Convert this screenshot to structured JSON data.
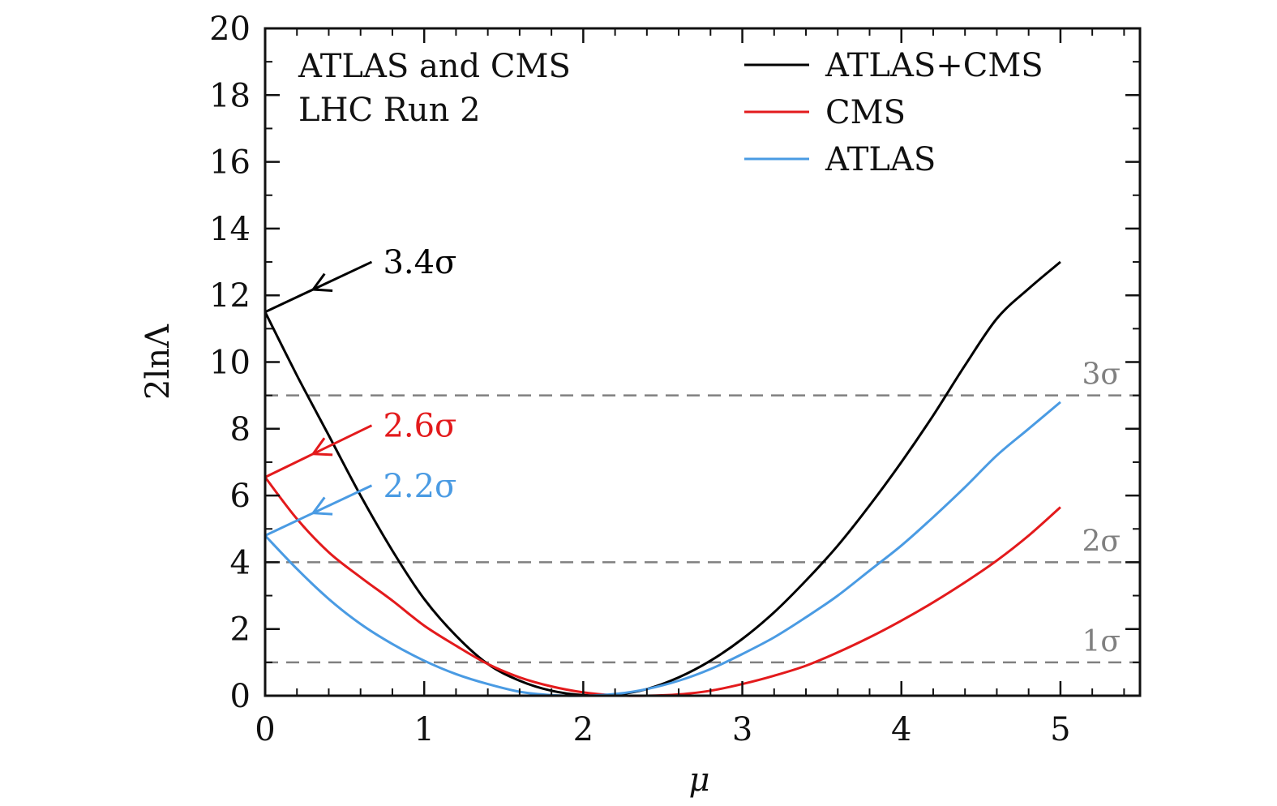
{
  "chart_data": {
    "type": "line",
    "title": "",
    "corner_text": [
      "ATLAS and CMS",
      "LHC Run 2"
    ],
    "xlabel": "μ",
    "ylabel": "2lnΛ",
    "xlim": [
      0,
      5.5
    ],
    "ylim": [
      0,
      20
    ],
    "xticks": [
      0,
      1,
      2,
      3,
      4,
      5
    ],
    "xtick_labels": [
      "0",
      "1",
      "2",
      "3",
      "4",
      "5"
    ],
    "yticks": [
      0,
      2,
      4,
      6,
      8,
      10,
      12,
      14,
      16,
      18,
      20
    ],
    "ytick_labels": [
      "0",
      "2",
      "4",
      "6",
      "8",
      "10",
      "12",
      "14",
      "16",
      "18",
      "20"
    ],
    "x_minor_step": 0.2,
    "y_minor_step": 1,
    "grid": false,
    "legend": {
      "placement": "top-right",
      "entries": [
        {
          "label": "ATLAS+CMS",
          "color": "#000000"
        },
        {
          "label": "CMS",
          "color": "#e31a1c"
        },
        {
          "label": "ATLAS",
          "color": "#4a9be3"
        }
      ]
    },
    "series": [
      {
        "name": "ATLAS+CMS",
        "color": "#000000",
        "x": [
          0,
          0.2,
          0.4,
          0.6,
          0.8,
          1.0,
          1.2,
          1.4,
          1.6,
          1.8,
          2.0,
          2.2,
          2.4,
          2.6,
          2.8,
          3.0,
          3.2,
          3.4,
          3.6,
          3.8,
          4.0,
          4.2,
          4.4,
          4.6,
          4.8,
          5.0
        ],
        "y": [
          11.5,
          9.6,
          7.8,
          6.0,
          4.35,
          2.9,
          1.8,
          0.95,
          0.45,
          0.15,
          0.02,
          0.03,
          0.2,
          0.55,
          1.05,
          1.7,
          2.5,
          3.45,
          4.5,
          5.7,
          7.0,
          8.4,
          9.9,
          11.3,
          12.2,
          13.0
        ]
      },
      {
        "name": "CMS",
        "color": "#e31a1c",
        "x": [
          0,
          0.2,
          0.4,
          0.6,
          0.8,
          1.0,
          1.2,
          1.4,
          1.6,
          1.8,
          2.0,
          2.2,
          2.4,
          2.6,
          2.8,
          3.0,
          3.2,
          3.4,
          3.6,
          3.8,
          4.0,
          4.2,
          4.4,
          4.6,
          4.8,
          5.0
        ],
        "y": [
          6.55,
          5.3,
          4.3,
          3.55,
          2.85,
          2.1,
          1.5,
          0.95,
          0.55,
          0.28,
          0.1,
          0.01,
          0.0,
          0.04,
          0.15,
          0.35,
          0.6,
          0.9,
          1.3,
          1.75,
          2.25,
          2.8,
          3.4,
          4.05,
          4.8,
          5.65
        ]
      },
      {
        "name": "ATLAS",
        "color": "#4a9be3",
        "x": [
          0,
          0.2,
          0.4,
          0.6,
          0.8,
          1.0,
          1.2,
          1.4,
          1.6,
          1.8,
          2.0,
          2.2,
          2.4,
          2.6,
          2.8,
          3.0,
          3.2,
          3.4,
          3.6,
          3.8,
          4.0,
          4.2,
          4.4,
          4.6,
          4.8,
          5.0
        ],
        "y": [
          4.8,
          3.8,
          2.9,
          2.15,
          1.55,
          1.05,
          0.65,
          0.35,
          0.12,
          0.02,
          0.0,
          0.05,
          0.2,
          0.45,
          0.8,
          1.25,
          1.75,
          2.35,
          3.0,
          3.75,
          4.5,
          5.35,
          6.25,
          7.2,
          8.0,
          8.8
        ]
      }
    ],
    "reference_lines": [
      {
        "y": 1,
        "label": "1σ",
        "color": "#808080",
        "style": "dashed"
      },
      {
        "y": 4,
        "label": "2σ",
        "color": "#808080",
        "style": "dashed"
      },
      {
        "y": 9,
        "label": "3σ",
        "color": "#808080",
        "style": "dashed"
      }
    ],
    "annotations": [
      {
        "text": "3.4σ",
        "color": "#000000",
        "arrow_from": [
          0.67,
          13.0
        ],
        "arrow_to": [
          0,
          11.5
        ]
      },
      {
        "text": "2.6σ",
        "color": "#e31a1c",
        "arrow_from": [
          0.67,
          8.1
        ],
        "arrow_to": [
          0,
          6.55
        ]
      },
      {
        "text": "2.2σ",
        "color": "#4a9be3",
        "arrow_from": [
          0.67,
          6.3
        ],
        "arrow_to": [
          0,
          4.8
        ]
      }
    ]
  }
}
